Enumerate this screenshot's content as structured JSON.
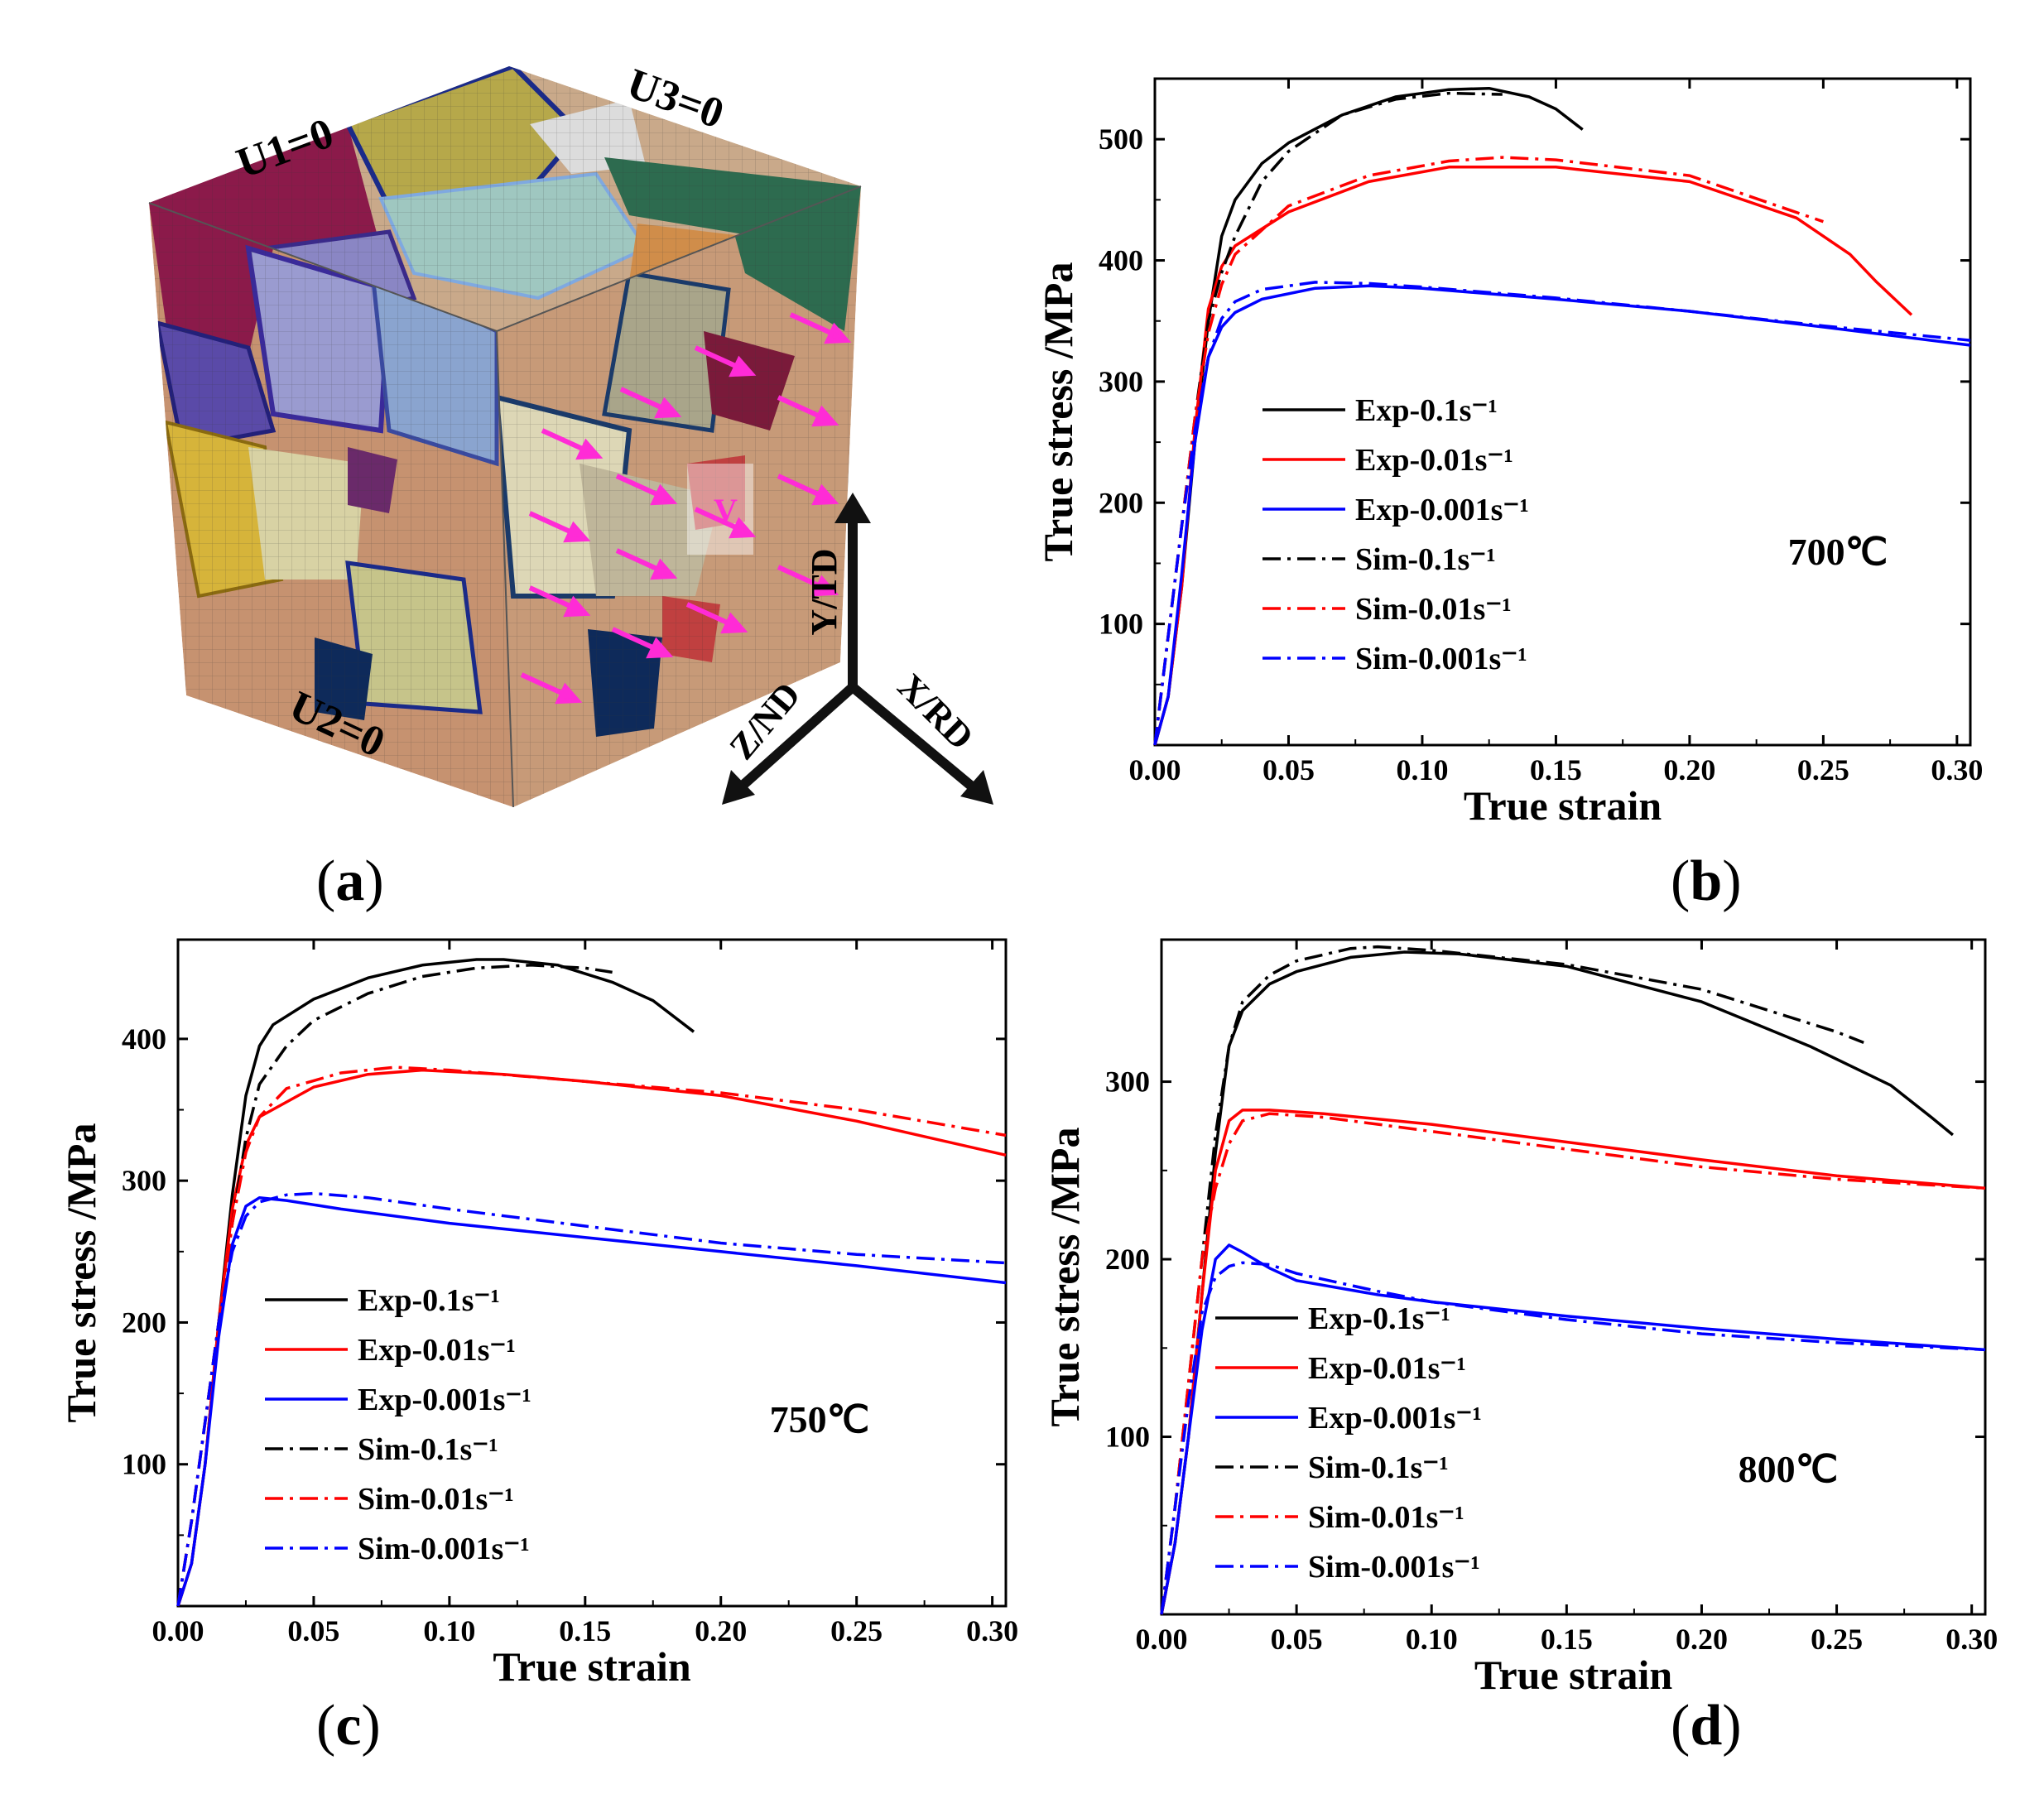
{
  "panel_labels": [
    "a",
    "b",
    "c",
    "d"
  ],
  "figure_a": {
    "boundary_conditions": [
      "U1=0",
      "U3=0",
      "U2=0"
    ],
    "axes": [
      "Y/TD",
      "Z/ND",
      "X/RD"
    ],
    "velocity_label": "V",
    "colors": {
      "arrow": "#ff2bd6",
      "axis": "#111111"
    }
  },
  "chart_data": [
    {
      "id": "b",
      "type": "line",
      "temperature_label": "700℃",
      "xlabel": "True strain",
      "ylabel": "True stress /MPa",
      "xlim": [
        0,
        0.305
      ],
      "ylim": [
        0,
        550
      ],
      "xticks": [
        0.0,
        0.05,
        0.1,
        0.15,
        0.2,
        0.25,
        0.3
      ],
      "xtick_labels": [
        "0.00",
        "0.05",
        "0.10",
        "0.15",
        "0.20",
        "0.25",
        "0.30"
      ],
      "yticks": [
        100,
        200,
        300,
        400,
        500
      ],
      "ytick_labels": [
        "100",
        "200",
        "300",
        "400",
        "500"
      ],
      "series": [
        {
          "name": "Exp-0.1s⁻¹",
          "color": "#000000",
          "dash": "solid",
          "x": [
            0,
            0.005,
            0.01,
            0.015,
            0.02,
            0.025,
            0.03,
            0.04,
            0.05,
            0.07,
            0.09,
            0.11,
            0.125,
            0.14,
            0.15,
            0.16
          ],
          "y": [
            0,
            40,
            130,
            250,
            350,
            420,
            450,
            480,
            497,
            520,
            535,
            541,
            542,
            535,
            525,
            508
          ]
        },
        {
          "name": "Exp-0.01s⁻¹",
          "color": "#ff0000",
          "dash": "solid",
          "x": [
            0,
            0.005,
            0.01,
            0.015,
            0.02,
            0.025,
            0.03,
            0.05,
            0.08,
            0.11,
            0.15,
            0.2,
            0.24,
            0.26,
            0.27,
            0.283
          ],
          "y": [
            0,
            40,
            130,
            260,
            360,
            395,
            412,
            440,
            465,
            477,
            477,
            465,
            435,
            405,
            382,
            355
          ]
        },
        {
          "name": "Exp-0.001s⁻¹",
          "color": "#0000ff",
          "dash": "solid",
          "x": [
            0,
            0.005,
            0.01,
            0.015,
            0.02,
            0.025,
            0.03,
            0.04,
            0.06,
            0.08,
            0.1,
            0.15,
            0.2,
            0.25,
            0.305
          ],
          "y": [
            0,
            40,
            140,
            250,
            320,
            345,
            357,
            368,
            377,
            379,
            377,
            368,
            358,
            345,
            330
          ]
        },
        {
          "name": "Sim-0.1s⁻¹",
          "color": "#000000",
          "dash": "dashdot",
          "x": [
            0,
            0.005,
            0.01,
            0.015,
            0.02,
            0.025,
            0.03,
            0.04,
            0.05,
            0.07,
            0.09,
            0.11,
            0.13
          ],
          "y": [
            0,
            90,
            180,
            270,
            350,
            390,
            420,
            465,
            490,
            520,
            533,
            538,
            537
          ]
        },
        {
          "name": "Sim-0.01s⁻¹",
          "color": "#ff0000",
          "dash": "dashdot",
          "x": [
            0,
            0.005,
            0.01,
            0.015,
            0.02,
            0.025,
            0.03,
            0.05,
            0.08,
            0.11,
            0.13,
            0.15,
            0.2,
            0.25
          ],
          "y": [
            0,
            90,
            180,
            270,
            340,
            380,
            405,
            445,
            470,
            482,
            485,
            483,
            470,
            432
          ]
        },
        {
          "name": "Sim-0.001s⁻¹",
          "color": "#0000ff",
          "dash": "dashdot",
          "x": [
            0,
            0.005,
            0.01,
            0.015,
            0.02,
            0.025,
            0.03,
            0.04,
            0.06,
            0.08,
            0.1,
            0.15,
            0.2,
            0.25,
            0.305
          ],
          "y": [
            0,
            90,
            180,
            260,
            320,
            352,
            366,
            376,
            382,
            381,
            378,
            369,
            358,
            346,
            334
          ]
        }
      ]
    },
    {
      "id": "c",
      "type": "line",
      "temperature_label": "750℃",
      "xlabel": "True strain",
      "ylabel": "True stress /MPa",
      "xlim": [
        0,
        0.305
      ],
      "ylim": [
        0,
        470
      ],
      "xticks": [
        0.0,
        0.05,
        0.1,
        0.15,
        0.2,
        0.25,
        0.3
      ],
      "xtick_labels": [
        "0.00",
        "0.05",
        "0.10",
        "0.15",
        "0.20",
        "0.25",
        "0.30"
      ],
      "yticks": [
        100,
        200,
        300,
        400
      ],
      "ytick_labels": [
        "100",
        "200",
        "300",
        "400"
      ],
      "series": [
        {
          "name": "Exp-0.1s⁻¹",
          "color": "#000000",
          "dash": "solid",
          "x": [
            0,
            0.005,
            0.01,
            0.015,
            0.02,
            0.025,
            0.03,
            0.035,
            0.05,
            0.07,
            0.09,
            0.11,
            0.12,
            0.14,
            0.16,
            0.175,
            0.19
          ],
          "y": [
            0,
            30,
            100,
            200,
            290,
            360,
            395,
            410,
            428,
            443,
            452,
            456,
            456,
            452,
            440,
            427,
            405
          ]
        },
        {
          "name": "Exp-0.01s⁻¹",
          "color": "#ff0000",
          "dash": "solid",
          "x": [
            0,
            0.005,
            0.01,
            0.015,
            0.02,
            0.025,
            0.03,
            0.05,
            0.07,
            0.09,
            0.12,
            0.15,
            0.2,
            0.25,
            0.305
          ],
          "y": [
            0,
            30,
            100,
            200,
            280,
            325,
            345,
            366,
            375,
            378,
            375,
            370,
            360,
            342,
            318
          ]
        },
        {
          "name": "Exp-0.001s⁻¹",
          "color": "#0000ff",
          "dash": "solid",
          "x": [
            0,
            0.005,
            0.01,
            0.015,
            0.02,
            0.025,
            0.03,
            0.04,
            0.06,
            0.1,
            0.15,
            0.2,
            0.25,
            0.305
          ],
          "y": [
            0,
            30,
            100,
            190,
            255,
            282,
            288,
            286,
            280,
            270,
            260,
            250,
            240,
            228
          ]
        },
        {
          "name": "Sim-0.1s⁻¹",
          "color": "#000000",
          "dash": "dashdot",
          "x": [
            0,
            0.005,
            0.01,
            0.015,
            0.02,
            0.025,
            0.03,
            0.04,
            0.05,
            0.07,
            0.09,
            0.11,
            0.13,
            0.15,
            0.16
          ],
          "y": [
            0,
            60,
            130,
            200,
            270,
            330,
            368,
            395,
            413,
            432,
            444,
            450,
            452,
            450,
            447
          ]
        },
        {
          "name": "Sim-0.01s⁻¹",
          "color": "#ff0000",
          "dash": "dashdot",
          "x": [
            0,
            0.005,
            0.01,
            0.015,
            0.02,
            0.025,
            0.03,
            0.04,
            0.06,
            0.08,
            0.1,
            0.15,
            0.2,
            0.25,
            0.305
          ],
          "y": [
            0,
            60,
            130,
            200,
            270,
            320,
            345,
            365,
            376,
            380,
            378,
            370,
            362,
            350,
            332
          ]
        },
        {
          "name": "Sim-0.001s⁻¹",
          "color": "#0000ff",
          "dash": "dashdot",
          "x": [
            0,
            0.005,
            0.01,
            0.015,
            0.02,
            0.025,
            0.03,
            0.04,
            0.05,
            0.07,
            0.1,
            0.15,
            0.2,
            0.25,
            0.305
          ],
          "y": [
            0,
            60,
            130,
            200,
            250,
            275,
            285,
            290,
            291,
            288,
            280,
            268,
            256,
            248,
            242
          ]
        }
      ]
    },
    {
      "id": "d",
      "type": "line",
      "temperature_label": "800℃",
      "xlabel": "True strain",
      "ylabel": "True stress /MPa",
      "xlim": [
        0,
        0.305
      ],
      "ylim": [
        0,
        380
      ],
      "xticks": [
        0.0,
        0.05,
        0.1,
        0.15,
        0.2,
        0.25,
        0.3
      ],
      "xtick_labels": [
        "0.00",
        "0.05",
        "0.10",
        "0.15",
        "0.20",
        "0.25",
        "0.30"
      ],
      "yticks": [
        100,
        200,
        300
      ],
      "ytick_labels": [
        "100",
        "200",
        "300"
      ],
      "series": [
        {
          "name": "Exp-0.1s⁻¹",
          "color": "#000000",
          "dash": "solid",
          "x": [
            0,
            0.005,
            0.01,
            0.015,
            0.02,
            0.025,
            0.03,
            0.04,
            0.05,
            0.07,
            0.09,
            0.11,
            0.15,
            0.2,
            0.24,
            0.27,
            0.285,
            0.293
          ],
          "y": [
            0,
            40,
            100,
            180,
            260,
            320,
            340,
            355,
            362,
            370,
            373,
            372,
            365,
            345,
            320,
            298,
            280,
            270
          ]
        },
        {
          "name": "Exp-0.01s⁻¹",
          "color": "#ff0000",
          "dash": "solid",
          "x": [
            0,
            0.005,
            0.01,
            0.015,
            0.02,
            0.025,
            0.03,
            0.04,
            0.06,
            0.1,
            0.15,
            0.2,
            0.25,
            0.305
          ],
          "y": [
            0,
            40,
            100,
            180,
            250,
            278,
            284,
            284,
            282,
            276,
            266,
            256,
            247,
            240
          ]
        },
        {
          "name": "Exp-0.001s⁻¹",
          "color": "#0000ff",
          "dash": "solid",
          "x": [
            0,
            0.005,
            0.01,
            0.015,
            0.02,
            0.025,
            0.03,
            0.04,
            0.05,
            0.08,
            0.1,
            0.15,
            0.2,
            0.25,
            0.305
          ],
          "y": [
            0,
            40,
            100,
            160,
            200,
            208,
            204,
            195,
            188,
            180,
            176,
            168,
            161,
            155,
            149
          ]
        },
        {
          "name": "Sim-0.1s⁻¹",
          "color": "#000000",
          "dash": "dashdot",
          "x": [
            0,
            0.005,
            0.01,
            0.015,
            0.02,
            0.025,
            0.03,
            0.04,
            0.05,
            0.07,
            0.08,
            0.1,
            0.15,
            0.2,
            0.25,
            0.26
          ],
          "y": [
            0,
            60,
            130,
            200,
            270,
            320,
            345,
            360,
            368,
            375,
            376,
            374,
            366,
            352,
            328,
            322
          ]
        },
        {
          "name": "Sim-0.01s⁻¹",
          "color": "#ff0000",
          "dash": "dashdot",
          "x": [
            0,
            0.005,
            0.01,
            0.015,
            0.02,
            0.025,
            0.03,
            0.04,
            0.06,
            0.1,
            0.15,
            0.2,
            0.25,
            0.305
          ],
          "y": [
            0,
            60,
            130,
            200,
            240,
            265,
            278,
            282,
            280,
            272,
            262,
            252,
            245,
            240
          ]
        },
        {
          "name": "Sim-0.001s⁻¹",
          "color": "#0000ff",
          "dash": "dashdot",
          "x": [
            0,
            0.005,
            0.01,
            0.015,
            0.02,
            0.025,
            0.03,
            0.04,
            0.05,
            0.08,
            0.1,
            0.15,
            0.2,
            0.25,
            0.305
          ],
          "y": [
            0,
            60,
            120,
            170,
            190,
            196,
            198,
            197,
            192,
            182,
            176,
            166,
            158,
            153,
            149
          ]
        }
      ]
    }
  ]
}
